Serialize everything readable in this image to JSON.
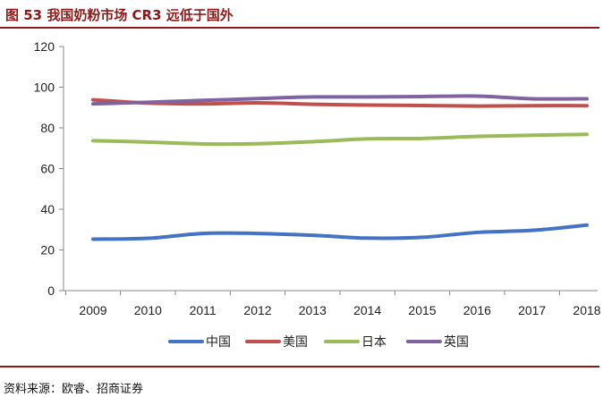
{
  "header": {
    "title": "图 53 我国奶粉市场 CR3 远低于国外"
  },
  "footer": {
    "source": "资料来源：欧睿、招商证券"
  },
  "chart_data": {
    "type": "line",
    "x": [
      "2009",
      "2010",
      "2011",
      "2012",
      "2013",
      "2014",
      "2015",
      "2016",
      "2017",
      "2018"
    ],
    "ylim": [
      0,
      120
    ],
    "yticks": [
      0,
      20,
      40,
      60,
      80,
      100,
      120
    ],
    "grid": false,
    "legend": "bottom",
    "series": [
      {
        "name": "中国",
        "color": "#4472c4",
        "values": [
          25.3,
          25.7,
          28.1,
          28.1,
          27.2,
          25.8,
          26.2,
          28.6,
          29.6,
          32.2
        ]
      },
      {
        "name": "美国",
        "color": "#c0504d",
        "values": [
          93.8,
          92.2,
          91.8,
          92.3,
          91.6,
          91.2,
          91.0,
          90.7,
          90.9,
          90.9
        ]
      },
      {
        "name": "日本",
        "color": "#9bbb59",
        "values": [
          73.7,
          73.0,
          72.1,
          72.2,
          73.2,
          74.6,
          74.8,
          75.8,
          76.4,
          76.8
        ]
      },
      {
        "name": "英国",
        "color": "#8064a2",
        "values": [
          91.8,
          92.6,
          93.5,
          94.4,
          95.2,
          95.2,
          95.4,
          95.6,
          94.3,
          94.3
        ]
      }
    ]
  }
}
